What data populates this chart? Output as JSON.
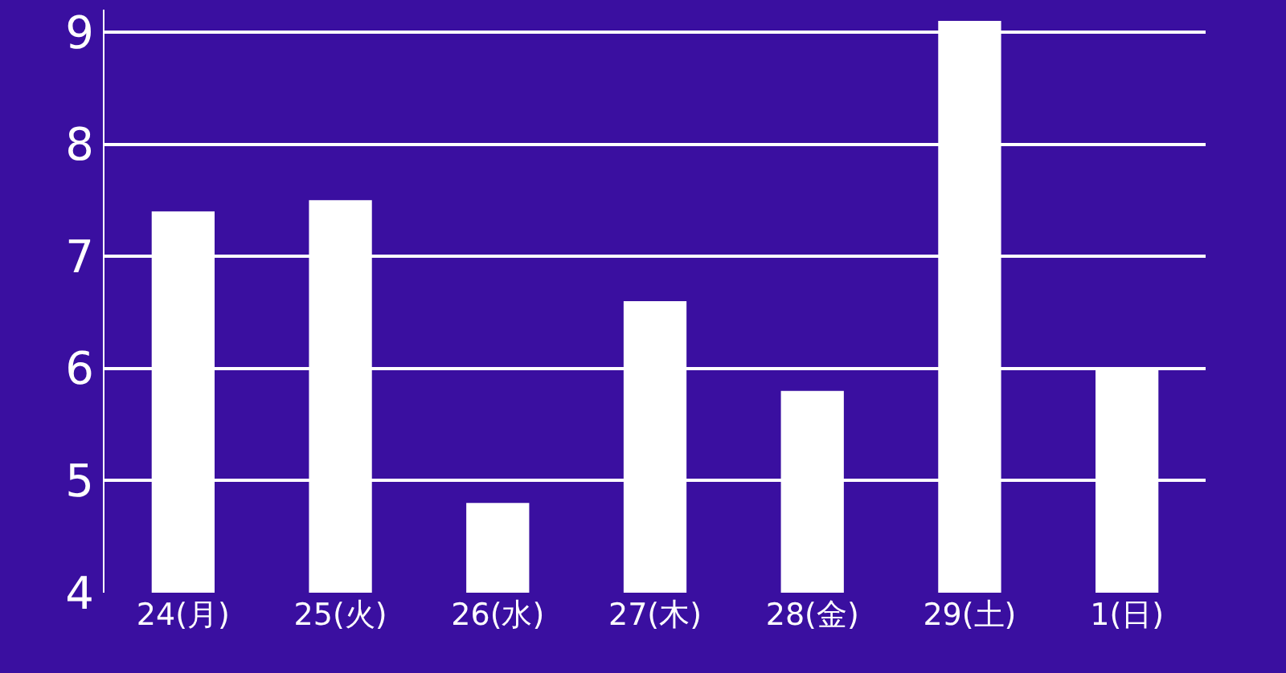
{
  "chart_data": {
    "type": "bar",
    "categories": [
      "24(月)",
      "25(火)",
      "26(水)",
      "27(木)",
      "28(金)",
      "29(土)",
      "1(日)"
    ],
    "values": [
      7.4,
      7.5,
      4.8,
      6.6,
      5.8,
      9.1,
      6.0
    ],
    "color": "#ffffff",
    "ylim": [
      4,
      9.2
    ],
    "yticks": [
      4,
      5,
      6,
      7,
      8,
      9
    ],
    "grid": "y",
    "legend": false
  }
}
